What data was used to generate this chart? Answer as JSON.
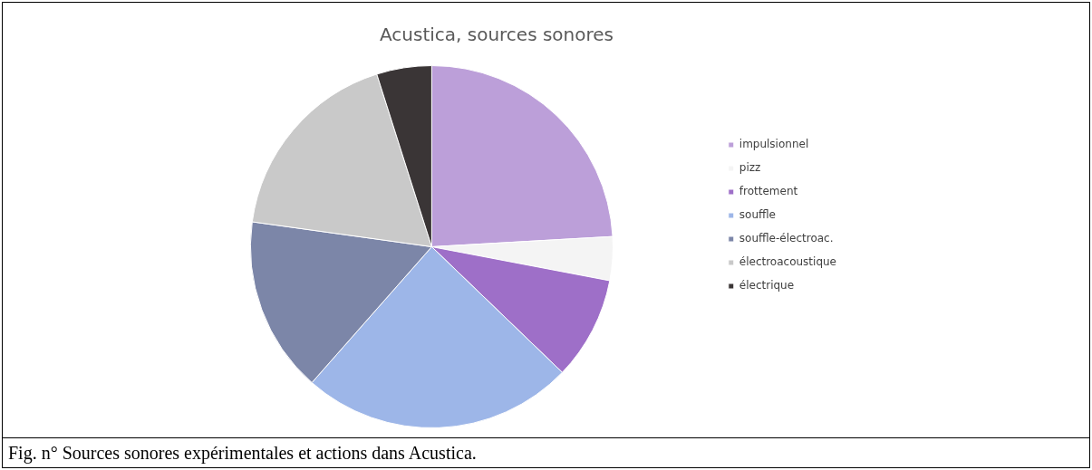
{
  "chart_data": {
    "type": "pie",
    "title": "Acustica, sources sonores",
    "categories": [
      "impulsionnel",
      "pizz",
      "frottement",
      "souffle",
      "souffle-électroac.",
      "électroacoustique",
      "électrique"
    ],
    "values": [
      24.1,
      3.9,
      9.2,
      24.3,
      15.7,
      17.9,
      4.9
    ],
    "colors": [
      "#bc9fd9",
      "#f4f4f4",
      "#9e6fc8",
      "#9db6e8",
      "#7c86a8",
      "#c9c9c9",
      "#3a3536"
    ],
    "legend": "right",
    "annotations": [
      "Fig. n° Sources sonores expérimentales et actions dans Acustica."
    ]
  }
}
